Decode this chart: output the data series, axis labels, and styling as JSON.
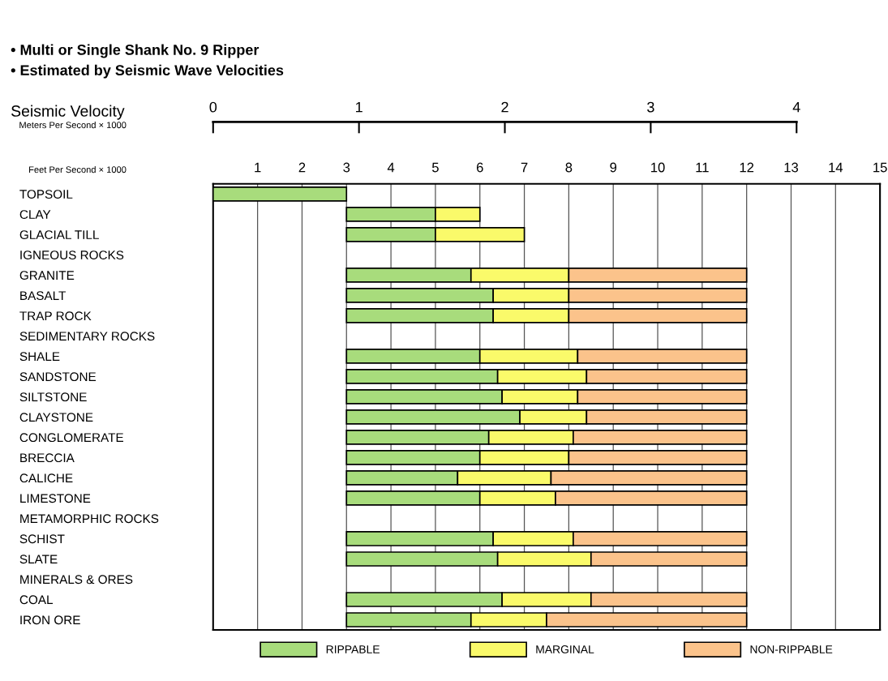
{
  "chart_data": {
    "type": "bar",
    "orientation": "horizontal",
    "title": "• Multi or Single Shank No. 9 Ripper",
    "subtitle": "• Estimated by Seismic Wave Velocities",
    "annotations": [
      "Seismic Velocity"
    ],
    "xlabel": "Feet Per Second × 1000",
    "x2label": "Meters Per Second × 1000",
    "categories": [
      "TOPSOIL",
      "CLAY",
      "GLACIAL TILL",
      "IGNEOUS ROCKS",
      "GRANITE",
      "BASALT",
      "TRAP ROCK",
      "SEDIMENTARY ROCKS",
      "SHALE",
      "SANDSTONE",
      "SILTSTONE",
      "CLAYSTONE",
      "CONGLOMERATE",
      "BRECCIA",
      "CALICHE",
      "LIMESTONE",
      "METAMORPHIC ROCKS",
      "SCHIST",
      "SLATE",
      "MINERALS & ORES",
      "COAL",
      "IRON ORE"
    ],
    "series": [
      {
        "name": "RIPPABLE",
        "color": "#a8dc7c",
        "base": [
          0,
          3,
          3,
          null,
          3,
          3,
          3,
          null,
          3,
          3,
          3,
          3,
          3,
          3,
          3,
          3,
          null,
          3,
          3,
          null,
          3,
          3
        ],
        "values": [
          3,
          2,
          2,
          null,
          2.8,
          3.3,
          3.3,
          null,
          3.0,
          3.4,
          3.5,
          3.9,
          3.2,
          3.0,
          2.5,
          3.0,
          null,
          3.3,
          3.4,
          null,
          3.5,
          2.8
        ]
      },
      {
        "name": "MARGINAL",
        "color": "#fafa6a",
        "base": [
          null,
          5,
          5,
          null,
          5.8,
          6.3,
          6.3,
          null,
          6.0,
          6.4,
          6.5,
          6.9,
          6.2,
          6.0,
          5.5,
          6.0,
          null,
          6.3,
          6.4,
          null,
          6.5,
          5.8
        ],
        "values": [
          null,
          1,
          2,
          null,
          2.2,
          1.7,
          1.7,
          null,
          2.2,
          2.0,
          1.7,
          1.5,
          1.9,
          2.0,
          2.1,
          1.7,
          null,
          1.8,
          2.1,
          null,
          2.0,
          1.7
        ]
      },
      {
        "name": "NON-RIPPABLE",
        "color": "#fbc38b",
        "base": [
          null,
          null,
          null,
          null,
          8.0,
          8.0,
          8.0,
          null,
          8.2,
          8.4,
          8.2,
          8.4,
          8.1,
          8.0,
          7.6,
          7.7,
          null,
          8.1,
          8.5,
          null,
          8.5,
          7.5
        ],
        "values": [
          null,
          null,
          null,
          null,
          4.0,
          4.0,
          4.0,
          null,
          3.8,
          3.6,
          3.8,
          3.6,
          3.9,
          4.0,
          4.4,
          4.3,
          null,
          3.9,
          3.5,
          null,
          3.5,
          4.5
        ]
      }
    ],
    "xlim": [
      0,
      15
    ],
    "xticks": [
      1,
      2,
      3,
      4,
      5,
      6,
      7,
      8,
      9,
      10,
      11,
      12,
      13,
      14,
      15
    ],
    "x2lim": [
      0,
      4.572
    ],
    "x2ticks": [
      0,
      1,
      2,
      3,
      4
    ],
    "grid": "x",
    "legend": "bottom"
  }
}
